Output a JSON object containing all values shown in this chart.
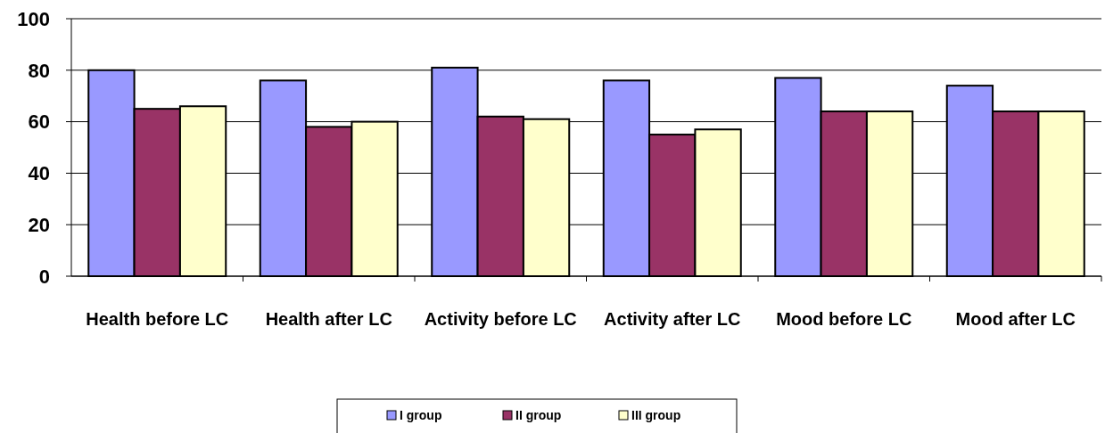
{
  "chart_data": {
    "type": "bar",
    "categories": [
      "Health before LC",
      "Health after LC",
      "Activity before LC",
      "Activity after LC",
      "Mood before LC",
      "Mood after LC"
    ],
    "series": [
      {
        "name": "I group",
        "color": "#9999ff",
        "values": [
          80,
          76,
          81,
          76,
          77,
          74
        ]
      },
      {
        "name": "II group",
        "color": "#993366",
        "values": [
          65,
          58,
          62,
          55,
          64,
          64
        ]
      },
      {
        "name": "III group",
        "color": "#ffffcc",
        "values": [
          66,
          60,
          61,
          57,
          64,
          64
        ]
      }
    ],
    "ylim": [
      0,
      100
    ],
    "yticks": [
      0,
      20,
      40,
      60,
      80,
      100
    ],
    "grid": "y",
    "legend": "bottom"
  }
}
